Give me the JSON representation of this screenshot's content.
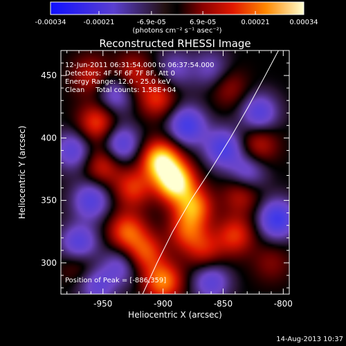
{
  "chart_data": {
    "type": "heatmap",
    "title": "Reconstructed RHESSI Image",
    "xlabel": "Heliocentric X (arcsec)",
    "ylabel": "Heliocentric Y (arcsec)",
    "xlim": [
      -985,
      -795
    ],
    "ylim": [
      275,
      470
    ],
    "xticks": [
      -950,
      -900,
      -850,
      -800
    ],
    "yticks": [
      300,
      350,
      400,
      450
    ],
    "colorbar": {
      "min": -0.00034,
      "max": 0.00034,
      "tick_values": [
        -0.00034,
        -0.00021,
        -6.9e-05,
        6.9e-05,
        0.00021,
        0.00034
      ],
      "tick_labels": [
        "-0.00034",
        "-0.00021",
        "-6.9e-05",
        "6.9e-05",
        "0.00021",
        "0.00034"
      ],
      "unit_label": "(photons cm⁻² s⁻¹ asec⁻²)"
    },
    "annotations": {
      "time_range": "12-Jun-2011 06:31:54.000 to 06:37:54.000",
      "detectors": "Detectors: 4F 5F 6F 7F 8F, Att 0",
      "energy_range": "Energy Range: 12.0 - 25.0 keV",
      "clean_counts": "Clean     Total counts: 1.58E+04",
      "peak_position": "Position of Peak = [-886,359]"
    },
    "peak": {
      "x": -886,
      "y": 359
    },
    "limb_curve": [
      {
        "x": -917,
        "y": 275
      },
      {
        "x": -905,
        "y": 300
      },
      {
        "x": -892,
        "y": 325
      },
      {
        "x": -877,
        "y": 350
      },
      {
        "x": -860,
        "y": 375
      },
      {
        "x": -844,
        "y": 400
      },
      {
        "x": -829,
        "y": 425
      },
      {
        "x": -815,
        "y": 450
      },
      {
        "x": -804,
        "y": 470
      }
    ],
    "sources": [
      {
        "x": -890,
        "y": 365,
        "amp": 1.0
      },
      {
        "x": -902,
        "y": 382,
        "amp": 0.9
      },
      {
        "x": -875,
        "y": 345,
        "amp": 0.65
      },
      {
        "x": -925,
        "y": 360,
        "amp": 0.45
      },
      {
        "x": -955,
        "y": 412,
        "amp": 0.5
      },
      {
        "x": -905,
        "y": 432,
        "amp": 0.45
      },
      {
        "x": -960,
        "y": 450,
        "amp": 0.35
      },
      {
        "x": -925,
        "y": 452,
        "amp": 0.35
      },
      {
        "x": -950,
        "y": 378,
        "amp": 0.4
      },
      {
        "x": -930,
        "y": 325,
        "amp": 0.55
      },
      {
        "x": -915,
        "y": 308,
        "amp": 0.5
      },
      {
        "x": -900,
        "y": 285,
        "amp": 0.65
      },
      {
        "x": -880,
        "y": 325,
        "amp": 0.45
      },
      {
        "x": -865,
        "y": 310,
        "amp": 0.35
      },
      {
        "x": -840,
        "y": 322,
        "amp": 0.45
      },
      {
        "x": -835,
        "y": 355,
        "amp": 0.35
      },
      {
        "x": -820,
        "y": 395,
        "amp": 0.35
      },
      {
        "x": -845,
        "y": 440,
        "amp": 0.25
      },
      {
        "x": -810,
        "y": 300,
        "amp": 0.2
      },
      {
        "x": -970,
        "y": 300,
        "amp": 0.25
      },
      {
        "x": -935,
        "y": 298,
        "amp": -0.35
      },
      {
        "x": -880,
        "y": 410,
        "amp": -0.6
      },
      {
        "x": -935,
        "y": 395,
        "amp": -0.5
      },
      {
        "x": -975,
        "y": 390,
        "amp": -0.45
      },
      {
        "x": -960,
        "y": 350,
        "amp": -0.5
      },
      {
        "x": -970,
        "y": 315,
        "amp": -0.55
      },
      {
        "x": -850,
        "y": 392,
        "amp": -0.55
      },
      {
        "x": -830,
        "y": 372,
        "amp": -0.4
      },
      {
        "x": -805,
        "y": 335,
        "amp": -0.65
      },
      {
        "x": -820,
        "y": 420,
        "amp": -0.5
      },
      {
        "x": -860,
        "y": 285,
        "amp": -0.45
      },
      {
        "x": -940,
        "y": 435,
        "amp": -0.4
      },
      {
        "x": -860,
        "y": 455,
        "amp": -0.3
      },
      {
        "x": -890,
        "y": 455,
        "amp": -0.3
      },
      {
        "x": -955,
        "y": 282,
        "amp": -0.4
      }
    ]
  },
  "footer": {
    "date_stamp": "14-Aug-2013 10:37"
  }
}
